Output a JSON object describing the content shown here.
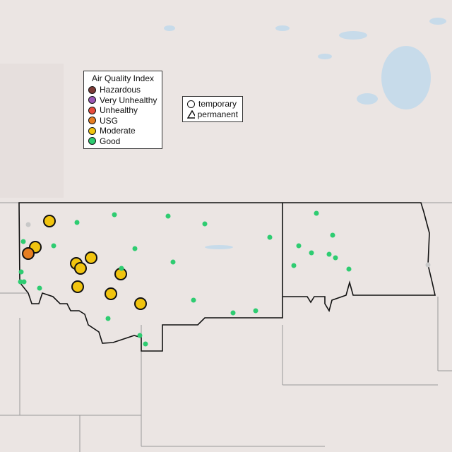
{
  "aqi_legend": {
    "title": "Air Quality Index",
    "items": [
      {
        "label": "Hazardous",
        "color": "#7e3b37"
      },
      {
        "label": "Very Unhealthy",
        "color": "#9b59b6"
      },
      {
        "label": "Unhealthy",
        "color": "#e74c3c"
      },
      {
        "label": "USG",
        "color": "#e67e22"
      },
      {
        "label": "Moderate",
        "color": "#f1c40f"
      },
      {
        "label": "Good",
        "color": "#2ecc71"
      }
    ]
  },
  "type_legend": {
    "temporary": "temporary",
    "permanent": "permanent"
  },
  "monitors": [
    "Moderate",
    "Moderate",
    "Moderate",
    "Moderate",
    "Moderate",
    "Moderate",
    "Moderate",
    "Moderate",
    "Moderate",
    "USG",
    "Good",
    "Good",
    "Good",
    "Good",
    "Good",
    "Good",
    "Good",
    "Good",
    "Good",
    "Good",
    "Good",
    "Good",
    "Good",
    "Good",
    "Good",
    "Good",
    "Good",
    "Good",
    "Good",
    "Good",
    "Good",
    "Good",
    "Good",
    "Good",
    "Good",
    "Good",
    "Good",
    "Good",
    "No data",
    "No data"
  ],
  "colors": {
    "no_data": "#c8c8c8",
    "land": "#ece6e4",
    "water": "#c7dbea"
  }
}
